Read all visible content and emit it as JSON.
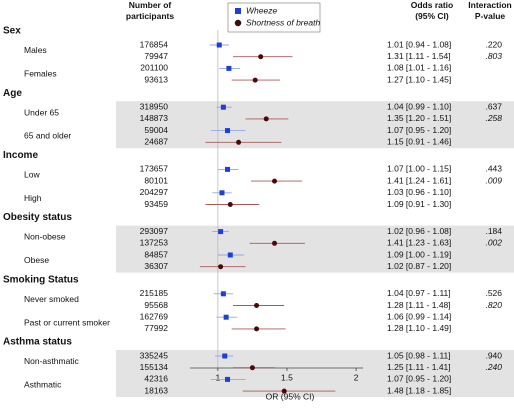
{
  "chart_data": {
    "type": "forest",
    "n_header": "Number of participants",
    "or_header": "Odds ratio (95% CI)",
    "p_header": "Interaction P-value",
    "xlabel": "OR (95% CI)",
    "xlim": [
      0.8,
      2.05
    ],
    "xticks": [
      1,
      1.5,
      2
    ],
    "null_line": 1,
    "series": [
      {
        "name": "Wheeze",
        "color": "#1c3fd4",
        "ci_color": "#93a6ea",
        "p_color": "#2a3ccc"
      },
      {
        "name": "Shortness of breath",
        "color": "#4a0808",
        "ci_color": "#a85a5a",
        "p_color": "#6b0f0f"
      }
    ],
    "groups": [
      {
        "label": "Sex",
        "subgroups": [
          {
            "label": "Males",
            "p_values": [
              ".220",
              ".803"
            ],
            "rows": [
              {
                "n": 176854,
                "or": 1.01,
                "lo": 0.94,
                "hi": 1.08,
                "value_label": "1.01 [0.94 - 1.08]"
              },
              {
                "n": 79947,
                "or": 1.31,
                "lo": 1.11,
                "hi": 1.54,
                "value_label": "1.31 [1.11 - 1.54]"
              }
            ]
          },
          {
            "label": "Females",
            "rows": [
              {
                "n": 201100,
                "or": 1.08,
                "lo": 1.01,
                "hi": 1.16,
                "value_label": "1.08 [1.01 - 1.16]"
              },
              {
                "n": 93613,
                "or": 1.27,
                "lo": 1.1,
                "hi": 1.45,
                "value_label": "1.27 [1.10 - 1.45]"
              }
            ]
          }
        ]
      },
      {
        "label": "Age",
        "subgroups": [
          {
            "label": "Under 65",
            "p_values": [
              ".637",
              ".258"
            ],
            "rows": [
              {
                "n": 318950,
                "or": 1.04,
                "lo": 0.99,
                "hi": 1.1,
                "value_label": "1.04 [0.99 - 1.10]"
              },
              {
                "n": 148873,
                "or": 1.35,
                "lo": 1.2,
                "hi": 1.51,
                "value_label": "1.35 [1.20 - 1.51]"
              }
            ]
          },
          {
            "label": "65 and older",
            "rows": [
              {
                "n": 59004,
                "or": 1.07,
                "lo": 0.95,
                "hi": 1.2,
                "value_label": "1.07 [0.95 - 1.20]"
              },
              {
                "n": 24687,
                "or": 1.15,
                "lo": 0.91,
                "hi": 1.46,
                "value_label": "1.15 [0.91 - 1.46]"
              }
            ]
          }
        ]
      },
      {
        "label": "Income",
        "subgroups": [
          {
            "label": "Low",
            "p_values": [
              ".443",
              ".009"
            ],
            "rows": [
              {
                "n": 173657,
                "or": 1.07,
                "lo": 1.0,
                "hi": 1.15,
                "value_label": "1.07 [1.00 - 1.15]"
              },
              {
                "n": 80101,
                "or": 1.41,
                "lo": 1.24,
                "hi": 1.61,
                "value_label": "1.41 [1.24 - 1.61]"
              }
            ]
          },
          {
            "label": "High",
            "rows": [
              {
                "n": 204297,
                "or": 1.03,
                "lo": 0.96,
                "hi": 1.1,
                "value_label": "1.03 [0.96 - 1.10]"
              },
              {
                "n": 93459,
                "or": 1.09,
                "lo": 0.91,
                "hi": 1.3,
                "value_label": "1.09 [0.91 - 1.30]"
              }
            ]
          }
        ]
      },
      {
        "label": "Obesity status",
        "subgroups": [
          {
            "label": "Non-obese",
            "p_values": [
              ".184",
              ".002"
            ],
            "rows": [
              {
                "n": 293097,
                "or": 1.02,
                "lo": 0.96,
                "hi": 1.08,
                "value_label": "1.02 [0.96 - 1.08]"
              },
              {
                "n": 137253,
                "or": 1.41,
                "lo": 1.23,
                "hi": 1.63,
                "value_label": "1.41 [1.23 - 1.63]"
              }
            ]
          },
          {
            "label": "Obese",
            "rows": [
              {
                "n": 84857,
                "or": 1.09,
                "lo": 1.0,
                "hi": 1.19,
                "value_label": "1.09 [1.00 - 1.19]"
              },
              {
                "n": 36307,
                "or": 1.02,
                "lo": 0.87,
                "hi": 1.2,
                "value_label": "1.02 [0.87 - 1.20]"
              }
            ]
          }
        ]
      },
      {
        "label": "Smoking Status",
        "subgroups": [
          {
            "label": "Never smoked",
            "p_values": [
              ".526",
              ".820"
            ],
            "rows": [
              {
                "n": 215185,
                "or": 1.04,
                "lo": 0.97,
                "hi": 1.11,
                "value_label": "1.04 [0.97 - 1.11]"
              },
              {
                "n": 95568,
                "or": 1.28,
                "lo": 1.11,
                "hi": 1.48,
                "value_label": "1.28 [1.11 - 1.48]"
              }
            ]
          },
          {
            "label": "Past or current smoker",
            "rows": [
              {
                "n": 162769,
                "or": 1.06,
                "lo": 0.99,
                "hi": 1.14,
                "value_label": "1.06 [0.99 - 1.14]"
              },
              {
                "n": 77992,
                "or": 1.28,
                "lo": 1.1,
                "hi": 1.49,
                "value_label": "1.28 [1.10 - 1.49]"
              }
            ]
          }
        ]
      },
      {
        "label": "Asthma status",
        "subgroups": [
          {
            "label": "Non-asthmatic",
            "p_values": [
              ".940",
              ".240"
            ],
            "rows": [
              {
                "n": 335245,
                "or": 1.05,
                "lo": 0.98,
                "hi": 1.11,
                "value_label": "1.05 [0.98 - 1.11]"
              },
              {
                "n": 155134,
                "or": 1.25,
                "lo": 1.11,
                "hi": 1.41,
                "value_label": "1.25 [1.11 - 1.41]"
              }
            ]
          },
          {
            "label": "Asthmatic",
            "rows": [
              {
                "n": 42316,
                "or": 1.07,
                "lo": 0.95,
                "hi": 1.2,
                "value_label": "1.07 [0.95 - 1.20]"
              },
              {
                "n": 18163,
                "or": 1.48,
                "lo": 1.18,
                "hi": 1.85,
                "value_label": "1.48 [1.18 - 1.85]"
              }
            ]
          }
        ]
      }
    ]
  }
}
